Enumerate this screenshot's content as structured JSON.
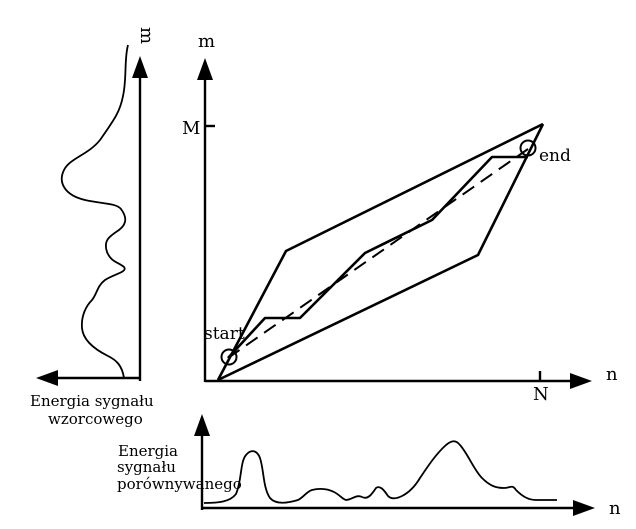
{
  "axes": {
    "main_x_label": "n",
    "main_y_label": "m",
    "main_x_tick": "N",
    "main_y_tick": "M",
    "left_y_label": "m",
    "bottom_x_label": "n"
  },
  "points": {
    "start": "start",
    "end": "end"
  },
  "labels": {
    "template_energy": [
      "Energia sygnału",
      "wzorcowego"
    ],
    "compared_energy": [
      "Energia",
      "sygnału",
      "porównywanego"
    ]
  }
}
